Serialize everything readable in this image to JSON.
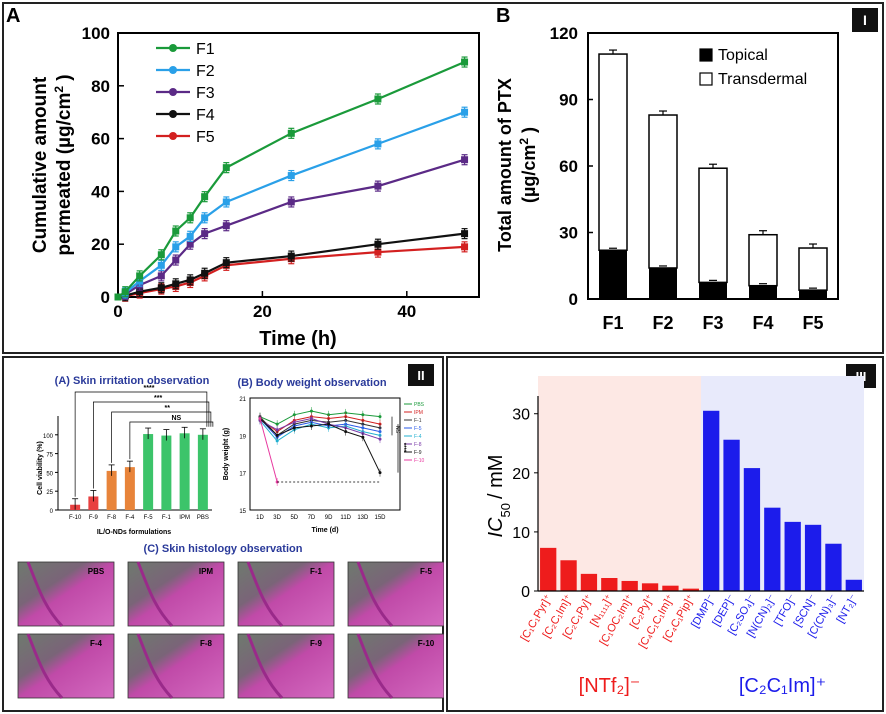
{
  "panel_I": {
    "roman": "I",
    "chart_A": {
      "letter": "A",
      "type": "line",
      "xlabel": "Time (h)",
      "ylabel_line1": "Cumulative amount",
      "ylabel_line2": "permeated (µg/cm",
      "ylabel_sup": "2",
      "ylabel_close": " )",
      "xlim": [
        0,
        50
      ],
      "ylim": [
        0,
        100
      ],
      "xticks": [
        0,
        20,
        40
      ],
      "yticks": [
        0,
        20,
        40,
        60,
        80,
        100
      ],
      "x": [
        0,
        1,
        3,
        6,
        8,
        10,
        12,
        15,
        24,
        36,
        48
      ],
      "series": [
        {
          "name": "F1",
          "color": "#1a9a3a",
          "values": [
            0,
            2,
            8,
            16,
            25,
            30,
            38,
            49,
            62,
            75,
            89
          ]
        },
        {
          "name": "F2",
          "color": "#2aa0e8",
          "values": [
            0,
            1.5,
            6,
            12,
            19,
            23,
            30,
            36,
            46,
            58,
            70
          ]
        },
        {
          "name": "F3",
          "color": "#5b2a86",
          "values": [
            0,
            1,
            4.5,
            8,
            14,
            20,
            24,
            27,
            36,
            42,
            52
          ]
        },
        {
          "name": "F4",
          "color": "#111111",
          "values": [
            0,
            0.5,
            2,
            3.5,
            5,
            6.5,
            9,
            13,
            15.5,
            20,
            24
          ]
        },
        {
          "name": "F5",
          "color": "#d32020",
          "values": [
            0,
            0.3,
            1.5,
            3,
            4,
            5.5,
            8,
            12,
            14.5,
            17,
            19
          ]
        }
      ]
    },
    "chart_B": {
      "letter": "B",
      "type": "bar",
      "categories": [
        "F1",
        "F2",
        "F3",
        "F4",
        "F5"
      ],
      "series": [
        {
          "name": "Topical",
          "color": "#000000",
          "values": [
            22,
            14,
            7.5,
            6,
            4
          ]
        },
        {
          "name": "Transdermal",
          "color": "#ffffff",
          "values": [
            88.5,
            69,
            51.5,
            23,
            19
          ]
        }
      ],
      "ylabel_line1": "Total amount of PTX",
      "ylabel_line2": "(µg/cm",
      "ylabel_sup": "2",
      "ylabel_close": " )",
      "ylim": [
        0,
        120
      ],
      "yticks": [
        0,
        30,
        60,
        90,
        120
      ]
    }
  },
  "panel_II": {
    "roman": "II",
    "sub_A": {
      "title": "(A) Skin irritation observation",
      "type": "bar",
      "categories": [
        "F-10",
        "F-9",
        "F-8",
        "F-4",
        "F-5",
        "F-1",
        "IPM",
        "PBS"
      ],
      "values": [
        7,
        18,
        52,
        57,
        101,
        99,
        102,
        100
      ],
      "colors": [
        "#e84040",
        "#e84040",
        "#e8843a",
        "#e8843a",
        "#3cc46a",
        "#3cc46a",
        "#3cc46a",
        "#3cc46a"
      ],
      "ylabel": "Cell viability (%)",
      "xlabel": "IL/O-NDs formulations",
      "ylim": [
        0,
        125
      ],
      "yticks": [
        0,
        25,
        50,
        75,
        100
      ],
      "sig": [
        "****",
        "***",
        "**",
        "NS"
      ]
    },
    "sub_B": {
      "title": "(B) Body weight observation",
      "type": "line",
      "ylabel": "Body weight (g)",
      "xlabel": "Time (d)",
      "x": [
        "1D",
        "3D",
        "5D",
        "7D",
        "9D",
        "11D",
        "13D",
        "15D"
      ],
      "ylim": [
        15,
        21
      ],
      "yticks": [
        15,
        17,
        19,
        21
      ],
      "series": [
        {
          "name": "PBS",
          "color": "#1a9a3a",
          "values": [
            20,
            19.6,
            20.1,
            20.3,
            20.1,
            20.2,
            20.1,
            20.0
          ]
        },
        {
          "name": "IPM",
          "color": "#d32020",
          "values": [
            19.9,
            19.2,
            19.8,
            20.0,
            19.9,
            20.0,
            19.8,
            19.6
          ]
        },
        {
          "name": "F-1",
          "color": "#333333",
          "values": [
            20,
            19.0,
            19.6,
            19.8,
            19.7,
            19.8,
            19.6,
            19.4
          ]
        },
        {
          "name": "F-5",
          "color": "#2a5ae8",
          "values": [
            19.9,
            18.9,
            19.5,
            19.7,
            19.5,
            19.6,
            19.4,
            19.2
          ]
        },
        {
          "name": "F-4",
          "color": "#22b0d0",
          "values": [
            19.8,
            18.7,
            19.3,
            19.6,
            19.4,
            19.5,
            19.2,
            19.0
          ]
        },
        {
          "name": "F-8",
          "color": "#7a3aa8",
          "values": [
            19.8,
            19.3,
            19.7,
            19.9,
            19.6,
            19.4,
            19.1,
            18.8
          ]
        },
        {
          "name": "F-9",
          "color": "#111111",
          "values": [
            19.9,
            19.0,
            19.4,
            19.5,
            19.6,
            19.2,
            18.9,
            17.0
          ]
        },
        {
          "name": "F-10",
          "color": "#e83aa0",
          "values": [
            19.9,
            16.5
          ]
        }
      ],
      "sig": [
        "NS",
        "****"
      ]
    },
    "sub_C": {
      "title": "(C) Skin histology observation",
      "tiles": [
        "PBS",
        "IPM",
        "F-1",
        "F-5",
        "F-4",
        "F-8",
        "F-9",
        "F-10"
      ]
    }
  },
  "panel_III": {
    "roman": "III",
    "type": "bar",
    "ylabel_ic": "IC",
    "ylabel_sub": "50",
    "ylabel_unit": "/ mM",
    "ylim": [
      0,
      33
    ],
    "yticks": [
      0,
      10,
      20,
      30
    ],
    "groups": [
      {
        "label": "[NTf₂]⁻",
        "color": "#ee1c1c",
        "bg": "#fde8e4",
        "categories": [
          "[C₁C₁Pyr]⁺",
          "[C₂C₁Im]⁺",
          "[C₂C₁Py]⁺",
          "[N₁₁₁₁]⁺",
          "[C₁OC₂Im]⁺",
          "[C₂Py]⁺",
          "[C₄C₁C₁Im]⁺",
          "[C₄C₁Pip]⁺"
        ],
        "values": [
          7.3,
          5.2,
          2.9,
          2.2,
          1.7,
          1.3,
          0.9,
          0.4
        ]
      },
      {
        "label": "[C₂C₁Im]⁺",
        "color": "#1c1ceb",
        "bg": "#e8eafb",
        "categories": [
          "[DMP]⁻",
          "[DEP]⁻",
          "[C₂SO₄]⁻",
          "[N(CN)₂]⁻",
          "[TFO]⁻",
          "[SCN]⁻",
          "[C(CN)₃]⁻",
          "[NT₂]⁻"
        ],
        "values": [
          30.5,
          25.6,
          20.8,
          14.1,
          11.7,
          11.2,
          8.0,
          1.9
        ]
      }
    ]
  }
}
